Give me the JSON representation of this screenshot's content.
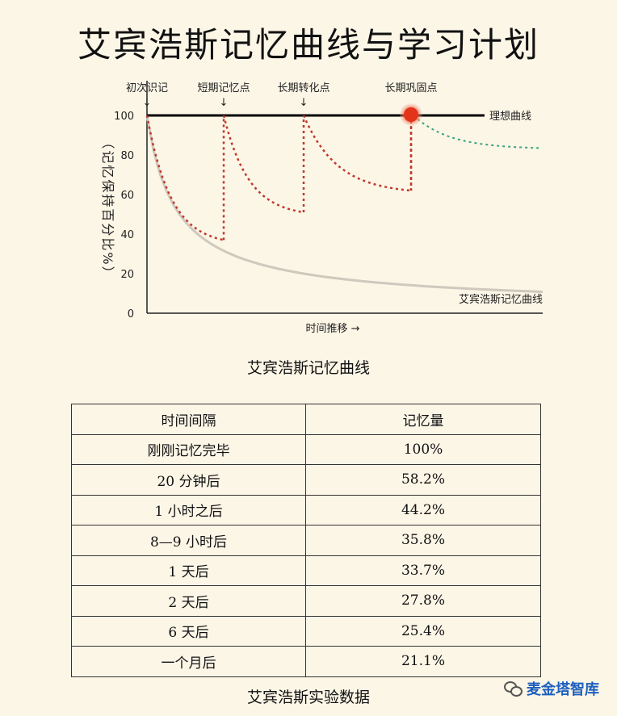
{
  "title": "艾宾浩斯记忆曲线与学习计划",
  "chart_caption": "艾宾浩斯记忆曲线",
  "table_caption": "艾宾浩斯实验数据",
  "watermark": "麦金塔智库",
  "chart_data": {
    "type": "line",
    "ylabel": "（记忆保持百分比%）",
    "xlabel": "时间推移 →",
    "ylim": [
      0,
      100
    ],
    "yticks": [
      0,
      20,
      40,
      60,
      80,
      100
    ],
    "points_labels": [
      {
        "text": "初次识记",
        "arrow": "↓"
      },
      {
        "text": "短期记忆点",
        "arrow": "↓"
      },
      {
        "text": "长期转化点",
        "arrow": "↓"
      },
      {
        "text": "长期巩固点",
        "arrow": ""
      }
    ],
    "series": [
      {
        "name": "理想曲线",
        "style": "solid",
        "color": "#000000"
      },
      {
        "name": "艾宾浩斯记忆曲线",
        "style": "solid",
        "color": "#cfc8bd"
      }
    ],
    "review_curve_color": "#c0392b",
    "tail_curve_color": "#3aa37a",
    "segments": [
      {
        "start": 100,
        "end": 37
      },
      {
        "start": 100,
        "end": 51
      },
      {
        "start": 100,
        "end": 62
      },
      {
        "start": 100,
        "end": 83
      }
    ]
  },
  "table": {
    "headers": [
      "时间间隔",
      "记忆量"
    ],
    "rows": [
      [
        "刚刚记忆完毕",
        "100%"
      ],
      [
        "20 分钟后",
        "58.2%"
      ],
      [
        "1 小时之后",
        "44.2%"
      ],
      [
        "8—9 小时后",
        "35.8%"
      ],
      [
        "1 天后",
        "33.7%"
      ],
      [
        "2 天后",
        "27.8%"
      ],
      [
        "6 天后",
        "25.4%"
      ],
      [
        "一个月后",
        "21.1%"
      ]
    ]
  }
}
